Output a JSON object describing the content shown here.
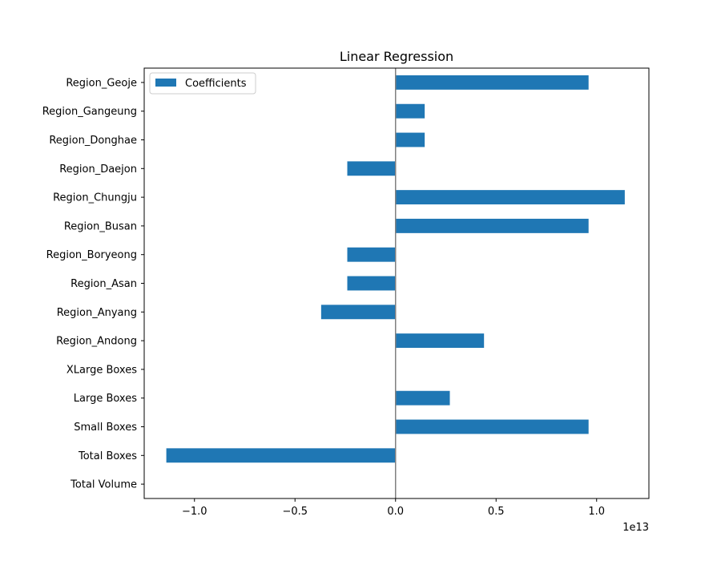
{
  "chart_data": {
    "type": "bar",
    "orientation": "horizontal",
    "title": "Linear Regression",
    "xlabel": "",
    "ylabel": "",
    "x_offset_label": "1e13",
    "categories": [
      "Total Volume",
      "Total Boxes",
      "Small Boxes",
      "Large Boxes",
      "XLarge Boxes",
      "Region_Andong",
      "Region_Anyang",
      "Region_Asan",
      "Region_Boryeong",
      "Region_Busan",
      "Region_Chungju",
      "Region_Daejon",
      "Region_Donghae",
      "Region_Gangeung",
      "Region_Geoje"
    ],
    "series": [
      {
        "name": "Coefficients",
        "values": [
          0,
          -1.14,
          0.96,
          0.27,
          0,
          0.44,
          -0.37,
          -0.24,
          -0.24,
          0.96,
          1.14,
          -0.24,
          0.145,
          0.145,
          0.96
        ]
      }
    ],
    "xlim": [
      -1.25,
      1.26
    ],
    "xticks": [
      -1.0,
      -0.5,
      0.0,
      0.5,
      1.0
    ],
    "xtick_labels": [
      "−1.0",
      "−0.5",
      "0.0",
      "0.5",
      "1.0"
    ],
    "zero_line": true,
    "grid": false,
    "legend_position": "upper-left",
    "colors": {
      "bar": "#1f77b4",
      "zero_line": "#808080",
      "axes": "#000000"
    }
  }
}
